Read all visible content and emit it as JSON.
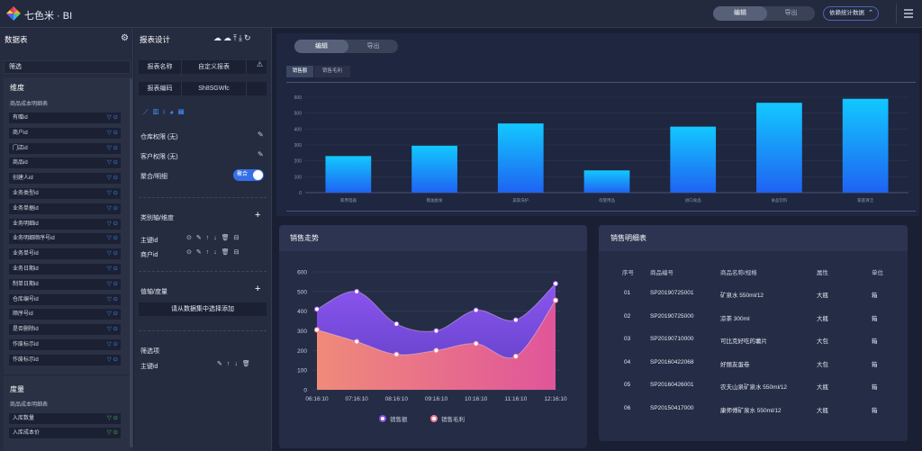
{
  "topbar": {
    "app_title": "七色米 · BI",
    "mode_edit": "编辑",
    "mode_export": "导出",
    "data_button": "依赖统计数据"
  },
  "sidebar": {
    "title": "数据表",
    "filter_label": "筛选",
    "dimension_title": "维度",
    "dimension_table": "商品成本明细表",
    "dimension_fields": [
      "有赠id",
      "商户id",
      "门店id",
      "商品id",
      "创建人id",
      "业务类型id",
      "业务单据id",
      "业务明细id",
      "业务明细顺序号id",
      "业务单号id",
      "业务日期id",
      "制单日期id",
      "仓库编号id",
      "顺序号id",
      "是否删除id",
      "作废标示id",
      "作废标示id"
    ],
    "measure_title": "度量",
    "measure_table": "商品成本明细表",
    "measure_fields": [
      "入库数量",
      "入库成本价"
    ]
  },
  "designer": {
    "title": "报表设计",
    "report_name_label": "报表名称",
    "report_name_value": "自定义报表",
    "report_code_label": "报表编码",
    "report_code_value": "Sh8SGWfc",
    "warehouse_perm": "仓库权限 (无)",
    "customer_perm": "客户权限 (无)",
    "agg_label": "聚合/明细",
    "agg_toggle": "聚合",
    "category_axis": "类别轴/维度",
    "category_items": [
      "主键id",
      "商户id"
    ],
    "value_axis": "值轴/度量",
    "add_from_dataset": "请从数据集中选择添加",
    "filter_items_title": "筛选项",
    "filter_items": [
      "主键id"
    ]
  },
  "main": {
    "mode_edit": "编辑",
    "mode_export": "导出",
    "bar_tabs": [
      "销售额",
      "销售毛利"
    ],
    "sales_trend_title": "销售走势",
    "detail_title": "销售明细表"
  },
  "chart_data": [
    {
      "type": "bar",
      "categories": [
        "家用电器",
        "粮油副食",
        "美容洗护",
        "母婴用品",
        "进口食品",
        "食品饮料",
        "家庭清洁"
      ],
      "values": [
        230,
        295,
        435,
        140,
        415,
        565,
        590
      ],
      "ylim": [
        0,
        600
      ],
      "yticks": [
        0,
        100,
        200,
        300,
        400,
        500,
        600
      ],
      "grid": true,
      "color_top": "#12c8ff",
      "color_bottom": "#1f63f2"
    },
    {
      "type": "area",
      "title": "销售走势",
      "x": [
        "06:16:10",
        "07:16:10",
        "08:16:10",
        "09:16:10",
        "10:16:10",
        "11:16:10",
        "12:16:10"
      ],
      "ylim": [
        0,
        600
      ],
      "yticks": [
        0,
        100,
        200,
        300,
        400,
        500,
        600
      ],
      "series": [
        {
          "name": "销售额",
          "color": "#8a4de6",
          "values": [
            410,
            500,
            335,
            300,
            405,
            355,
            540
          ]
        },
        {
          "name": "销售毛利",
          "color": "#f07a96",
          "values": [
            305,
            245,
            180,
            200,
            235,
            170,
            455
          ]
        }
      ],
      "legend": "bottom"
    }
  ],
  "detail_table": {
    "headers": [
      "序号",
      "商品编号",
      "商品名称/规格",
      "属性",
      "单位"
    ],
    "rows": [
      [
        "01",
        "SP20190725001",
        "矿泉水 550ml/12",
        "大瓶",
        "箱"
      ],
      [
        "02",
        "SP20190725000",
        "凉茶 300ml",
        "大瓶",
        "箱"
      ],
      [
        "03",
        "SP20190710000",
        "可比克好吃的薯片",
        "大包",
        "箱"
      ],
      [
        "04",
        "SP20160422068",
        "好丽友蛋卷",
        "大包",
        "箱"
      ],
      [
        "05",
        "SP20160426001",
        "农夫山泉矿泉水 550ml/12",
        "大瓶",
        "箱"
      ],
      [
        "06",
        "SP20150417000",
        "康师傅矿泉水 550ml/12",
        "大瓶",
        "箱"
      ]
    ]
  }
}
